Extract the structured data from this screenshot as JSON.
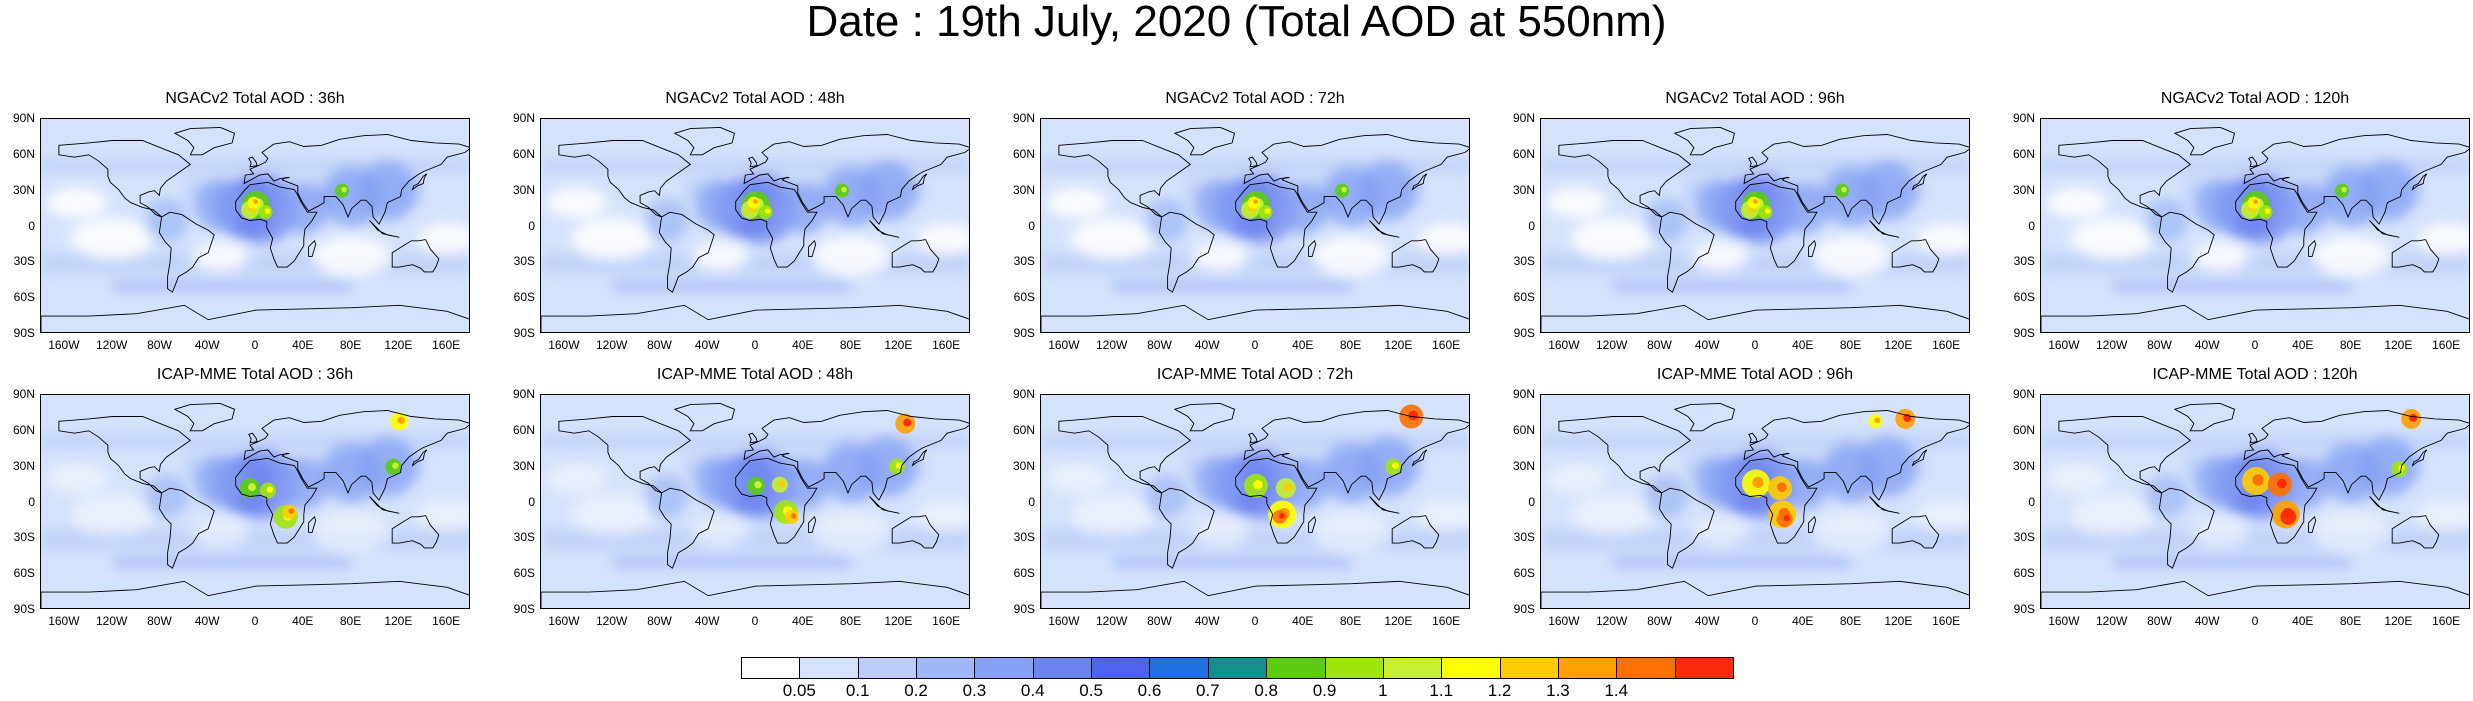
{
  "title": "Date : 19th July, 2020 (Total AOD at 550nm)",
  "panels": [
    {
      "title": "NGACv2 Total AOD : 36h",
      "model": "NGACv2",
      "lead": "36h"
    },
    {
      "title": "NGACv2 Total AOD : 48h",
      "model": "NGACv2",
      "lead": "48h"
    },
    {
      "title": "NGACv2 Total AOD : 72h",
      "model": "NGACv2",
      "lead": "72h"
    },
    {
      "title": "NGACv2 Total AOD : 96h",
      "model": "NGACv2",
      "lead": "96h"
    },
    {
      "title": "NGACv2 Total AOD : 120h",
      "model": "NGACv2",
      "lead": "120h"
    },
    {
      "title": "ICAP-MME Total AOD : 36h",
      "model": "ICAP-MME",
      "lead": "36h"
    },
    {
      "title": "ICAP-MME Total AOD : 48h",
      "model": "ICAP-MME",
      "lead": "48h"
    },
    {
      "title": "ICAP-MME Total AOD : 72h",
      "model": "ICAP-MME",
      "lead": "72h"
    },
    {
      "title": "ICAP-MME Total AOD : 96h",
      "model": "ICAP-MME",
      "lead": "96h"
    },
    {
      "title": "ICAP-MME Total AOD : 120h",
      "model": "ICAP-MME",
      "lead": "120h"
    }
  ],
  "lat_ticks": [
    "90N",
    "60N",
    "30N",
    "0",
    "30S",
    "60S",
    "90S"
  ],
  "lon_ticks": [
    "160W",
    "120W",
    "80W",
    "40W",
    "0",
    "40E",
    "80E",
    "120E",
    "160E"
  ],
  "colorbar": {
    "labels": [
      "0.05",
      "0.1",
      "0.2",
      "0.3",
      "0.4",
      "0.5",
      "0.6",
      "0.7",
      "0.8",
      "0.9",
      "1",
      "1.1",
      "1.2",
      "1.3",
      "1.4"
    ],
    "colors": [
      "#ffffff",
      "#d5e2fb",
      "#b9cdf8",
      "#9fb9f6",
      "#849ff3",
      "#6b83ef",
      "#4e64ec",
      "#1f6fe0",
      "#128f8f",
      "#5ccc10",
      "#9fe60f",
      "#c8f032",
      "#ffff00",
      "#ffcc00",
      "#ffa000",
      "#ff7000",
      "#ff2a0a"
    ]
  }
}
